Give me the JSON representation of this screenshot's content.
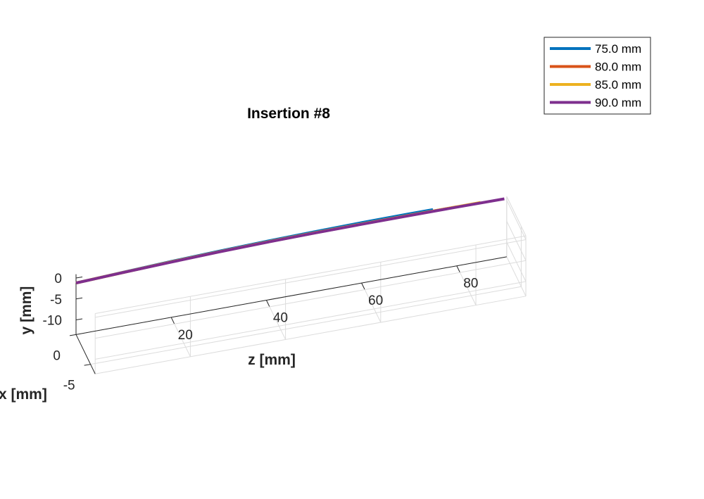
{
  "chart_data": {
    "type": "line",
    "title": "Insertion #8",
    "xlabel": "z [mm]",
    "ylabel": "y [mm]",
    "zlabel": "x [mm]",
    "z_ticks": [
      20,
      40,
      60,
      80
    ],
    "y_ticks": [
      0,
      -5,
      -10
    ],
    "x_ticks": [
      0,
      -5
    ],
    "grid": true,
    "legend_position": "top-right",
    "series": [
      {
        "name": "75.0 mm",
        "color": "#0072BD",
        "z": [
          0,
          10,
          20,
          30,
          40,
          50,
          60,
          70,
          75
        ],
        "y": [
          -1.2,
          -0.65,
          -0.15,
          0.25,
          0.55,
          0.78,
          0.9,
          0.95,
          0.95
        ]
      },
      {
        "name": "80.0 mm",
        "color": "#D95319",
        "z": [
          0,
          10,
          20,
          30,
          40,
          50,
          60,
          70,
          80
        ],
        "y": [
          -1.2,
          -0.7,
          -0.25,
          0.1,
          0.35,
          0.5,
          0.58,
          0.6,
          0.58
        ]
      },
      {
        "name": "85.0 mm",
        "color": "#EDB120",
        "z": [
          0,
          10,
          20,
          30,
          40,
          50,
          60,
          70,
          80,
          85
        ],
        "y": [
          -1.2,
          -0.7,
          -0.25,
          0.1,
          0.35,
          0.5,
          0.58,
          0.6,
          0.6,
          0.6
        ]
      },
      {
        "name": "90.0 mm",
        "color": "#7E2F8E",
        "z": [
          0,
          10,
          20,
          30,
          40,
          50,
          60,
          70,
          80,
          90
        ],
        "y": [
          -1.2,
          -0.72,
          -0.3,
          0.05,
          0.3,
          0.45,
          0.52,
          0.54,
          0.52,
          0.45
        ]
      }
    ]
  }
}
